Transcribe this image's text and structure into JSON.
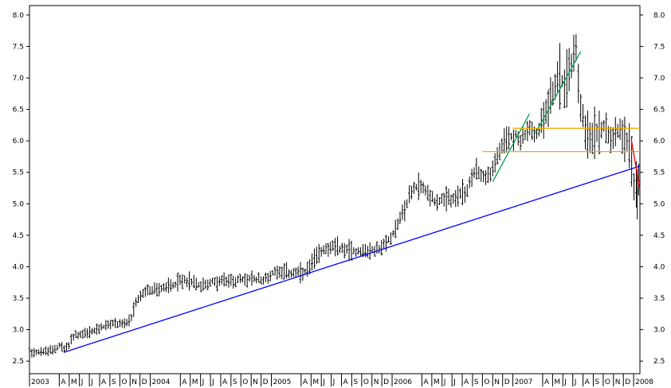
{
  "chart_data": {
    "type": "ohlc",
    "title": "",
    "xlabel": "",
    "ylabel": "",
    "ylim": [
      2.3,
      8.15
    ],
    "y_ticks": [
      "2.5",
      "3.0",
      "3.5",
      "4.0",
      "4.5",
      "5.0",
      "5.5",
      "6.0",
      "6.5",
      "7.0",
      "7.5",
      "8.0"
    ],
    "x_range": [
      "2003-01-01",
      "2008-01-20"
    ],
    "x_ticks": [
      {
        "label": "2003",
        "date": "2003-01-01"
      },
      {
        "label": "A",
        "date": "2003-04-01"
      },
      {
        "label": "M",
        "date": "2003-05-01"
      },
      {
        "label": "J",
        "date": "2003-06-01"
      },
      {
        "label": "J",
        "date": "2003-07-01"
      },
      {
        "label": "A",
        "date": "2003-08-01"
      },
      {
        "label": "S",
        "date": "2003-09-01"
      },
      {
        "label": "O",
        "date": "2003-10-01"
      },
      {
        "label": "N",
        "date": "2003-11-01"
      },
      {
        "label": "D",
        "date": "2003-12-01"
      },
      {
        "label": "2004",
        "date": "2004-01-01"
      },
      {
        "label": "A",
        "date": "2004-04-01"
      },
      {
        "label": "M",
        "date": "2004-05-01"
      },
      {
        "label": "J",
        "date": "2004-06-01"
      },
      {
        "label": "J",
        "date": "2004-07-01"
      },
      {
        "label": "A",
        "date": "2004-08-01"
      },
      {
        "label": "S",
        "date": "2004-09-01"
      },
      {
        "label": "O",
        "date": "2004-10-01"
      },
      {
        "label": "N",
        "date": "2004-11-01"
      },
      {
        "label": "D",
        "date": "2004-12-01"
      },
      {
        "label": "2005",
        "date": "2005-01-01"
      },
      {
        "label": "A",
        "date": "2005-04-01"
      },
      {
        "label": "M",
        "date": "2005-05-01"
      },
      {
        "label": "J",
        "date": "2005-06-01"
      },
      {
        "label": "J",
        "date": "2005-07-01"
      },
      {
        "label": "A",
        "date": "2005-08-01"
      },
      {
        "label": "S",
        "date": "2005-09-01"
      },
      {
        "label": "O",
        "date": "2005-10-01"
      },
      {
        "label": "N",
        "date": "2005-11-01"
      },
      {
        "label": "D",
        "date": "2005-12-01"
      },
      {
        "label": "2006",
        "date": "2006-01-01"
      },
      {
        "label": "A",
        "date": "2006-04-01"
      },
      {
        "label": "M",
        "date": "2006-05-01"
      },
      {
        "label": "J",
        "date": "2006-06-01"
      },
      {
        "label": "J",
        "date": "2006-07-01"
      },
      {
        "label": "A",
        "date": "2006-08-01"
      },
      {
        "label": "S",
        "date": "2006-09-01"
      },
      {
        "label": "O",
        "date": "2006-10-01"
      },
      {
        "label": "N",
        "date": "2006-11-01"
      },
      {
        "label": "D",
        "date": "2006-12-01"
      },
      {
        "label": "2007",
        "date": "2007-01-01"
      },
      {
        "label": "A",
        "date": "2007-04-01"
      },
      {
        "label": "M",
        "date": "2007-05-01"
      },
      {
        "label": "J",
        "date": "2007-06-01"
      },
      {
        "label": "J",
        "date": "2007-07-01"
      },
      {
        "label": "A",
        "date": "2007-08-01"
      },
      {
        "label": "S",
        "date": "2007-09-01"
      },
      {
        "label": "O",
        "date": "2007-10-01"
      },
      {
        "label": "N",
        "date": "2007-11-01"
      },
      {
        "label": "D",
        "date": "2007-12-01"
      },
      {
        "label": "2008",
        "date": "2008-01-01"
      }
    ],
    "price_path": [
      [
        "2003-01-01",
        2.65
      ],
      [
        "2003-03-01",
        2.65
      ],
      [
        "2003-04-01",
        2.75
      ],
      [
        "2003-04-20",
        2.68
      ],
      [
        "2003-05-15",
        2.9
      ],
      [
        "2003-07-01",
        2.95
      ],
      [
        "2003-08-15",
        3.05
      ],
      [
        "2003-09-15",
        3.1
      ],
      [
        "2003-11-01",
        3.1
      ],
      [
        "2003-11-20",
        3.45
      ],
      [
        "2003-12-15",
        3.6
      ],
      [
        "2004-02-01",
        3.65
      ],
      [
        "2004-03-01",
        3.7
      ],
      [
        "2004-04-15",
        3.8
      ],
      [
        "2004-06-01",
        3.7
      ],
      [
        "2004-07-01",
        3.75
      ],
      [
        "2004-09-01",
        3.78
      ],
      [
        "2004-11-01",
        3.8
      ],
      [
        "2004-12-15",
        3.8
      ],
      [
        "2005-01-15",
        3.95
      ],
      [
        "2005-03-01",
        3.9
      ],
      [
        "2005-04-15",
        3.9
      ],
      [
        "2005-05-15",
        4.15
      ],
      [
        "2005-06-10",
        4.3
      ],
      [
        "2005-07-15",
        4.3
      ],
      [
        "2005-09-15",
        4.25
      ],
      [
        "2005-11-01",
        4.25
      ],
      [
        "2005-12-01",
        4.3
      ],
      [
        "2005-12-25",
        4.45
      ],
      [
        "2006-01-15",
        4.65
      ],
      [
        "2006-02-10",
        4.95
      ],
      [
        "2006-03-01",
        5.2
      ],
      [
        "2006-03-25",
        5.3
      ],
      [
        "2006-04-15",
        5.2
      ],
      [
        "2006-05-10",
        5.05
      ],
      [
        "2006-06-15",
        5.05
      ],
      [
        "2006-07-15",
        5.1
      ],
      [
        "2006-08-15",
        5.2
      ],
      [
        "2006-09-10",
        5.55
      ],
      [
        "2006-09-25",
        5.5
      ],
      [
        "2006-10-10",
        5.4
      ],
      [
        "2006-11-01",
        5.55
      ],
      [
        "2006-11-25",
        5.85
      ],
      [
        "2006-12-15",
        6.05
      ],
      [
        "2007-01-10",
        6.1
      ],
      [
        "2007-01-25",
        6.0
      ],
      [
        "2007-02-20",
        6.2
      ],
      [
        "2007-03-10",
        6.05
      ],
      [
        "2007-04-01",
        6.35
      ],
      [
        "2007-05-01",
        6.8
      ],
      [
        "2007-05-20",
        7.0
      ],
      [
        "2007-06-10",
        6.9
      ],
      [
        "2007-06-25",
        7.2
      ],
      [
        "2007-07-10",
        7.55
      ],
      [
        "2007-07-25",
        6.6
      ],
      [
        "2007-08-10",
        6.2
      ],
      [
        "2007-08-25",
        5.95
      ],
      [
        "2007-09-10",
        6.15
      ],
      [
        "2007-10-01",
        6.25
      ],
      [
        "2007-10-25",
        6.1
      ],
      [
        "2007-11-20",
        6.2
      ],
      [
        "2007-12-10",
        6.1
      ],
      [
        "2007-12-25",
        5.7
      ],
      [
        "2008-01-05",
        5.2
      ],
      [
        "2008-01-15",
        5.45
      ]
    ],
    "trendlines": [
      {
        "color": "#0000ff",
        "start": [
          "2003-04-15",
          2.64
        ],
        "end": [
          "2008-01-20",
          5.6
        ]
      },
      {
        "color": "#00a050",
        "start": [
          "2006-11-01",
          5.35
        ],
        "end": [
          "2007-02-20",
          6.43
        ]
      },
      {
        "color": "#00a050",
        "start": [
          "2007-03-10",
          6.12
        ],
        "end": [
          "2007-07-25",
          7.42
        ]
      },
      {
        "color": "#f0b000",
        "start": [
          "2007-01-01",
          6.2
        ],
        "end": [
          "2008-01-20",
          6.2
        ]
      },
      {
        "color": "#f0b000",
        "start": [
          "2006-10-01",
          5.83
        ],
        "end": [
          "2008-01-20",
          5.83
        ]
      },
      {
        "color": "#ff0000",
        "start": [
          "2007-12-25",
          6.02
        ],
        "end": [
          "2008-01-20",
          5.22
        ]
      }
    ]
  }
}
